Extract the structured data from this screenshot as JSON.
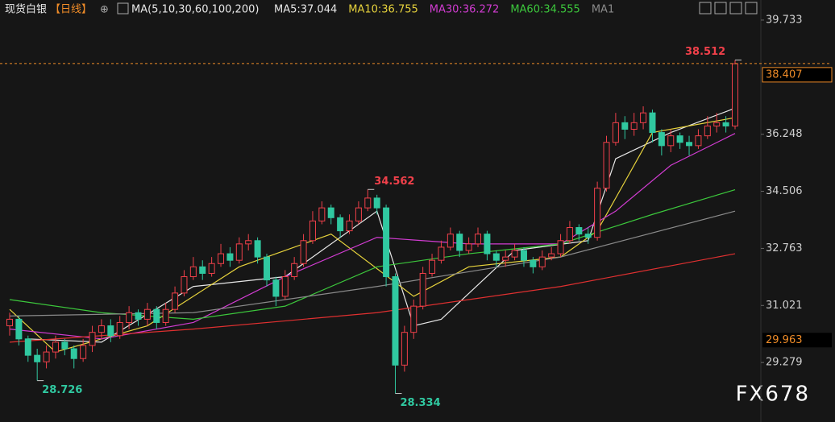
{
  "chart_data": {
    "type": "candlestick",
    "title": "现货白银",
    "period": "【日线】",
    "ma_params": "MA(5,10,30,60,100,200)",
    "ma_labels": [
      {
        "text": "MA5:37.044",
        "color": "#e8e8e8"
      },
      {
        "text": "MA10:36.755",
        "color": "#e6d23c"
      },
      {
        "text": "MA30:36.272",
        "color": "#d23cd2"
      },
      {
        "text": "MA60:34.555",
        "color": "#3cc83c"
      },
      {
        "text": "MA1",
        "color": "#8a8a8a"
      }
    ],
    "watermark": "FX678",
    "ylim": [
      27.463,
      40.346
    ],
    "yticks": [
      39.733,
      36.248,
      34.506,
      32.763,
      31.021,
      29.279
    ],
    "last_price": 38.407,
    "ref_price": 29.963,
    "annotations": [
      38.512,
      34.562,
      28.726,
      28.334
    ],
    "up_color": "#f0404a",
    "down_color": "#30c8a0",
    "open": [
      30.4,
      30.6,
      30.0,
      29.5,
      29.3,
      29.6,
      29.9,
      29.7,
      29.4,
      29.8,
      30.2,
      30.4,
      30.1,
      30.5,
      30.8,
      30.6,
      30.9,
      30.5,
      30.9,
      31.4,
      31.9,
      32.2,
      32.0,
      32.3,
      32.6,
      32.4,
      32.9,
      33.0,
      32.5,
      31.8,
      31.3,
      31.9,
      32.3,
      33.0,
      33.6,
      34.0,
      33.7,
      33.3,
      33.6,
      34.0,
      34.3,
      34.0,
      31.9,
      29.2,
      30.2,
      31.0,
      32.0,
      32.4,
      32.8,
      33.2,
      32.7,
      32.9,
      33.2,
      32.6,
      32.4,
      32.5,
      32.7,
      32.4,
      32.2,
      32.5,
      32.6,
      33.0,
      33.4,
      33.2,
      33.1,
      34.6,
      36.0,
      36.6,
      36.4,
      36.6,
      36.9,
      36.3,
      35.9,
      36.2,
      36.0,
      35.9,
      36.2,
      36.5,
      36.6,
      36.5
    ],
    "high": [
      30.8,
      30.7,
      30.1,
      29.7,
      29.8,
      30.1,
      30.0,
      29.8,
      30.0,
      30.4,
      30.6,
      30.6,
      30.7,
      31.0,
      30.9,
      31.1,
      31.0,
      31.1,
      31.6,
      32.1,
      32.5,
      32.4,
      32.5,
      32.9,
      32.8,
      33.1,
      33.2,
      33.1,
      32.6,
      31.9,
      32.1,
      32.5,
      33.2,
      33.9,
      34.2,
      34.1,
      33.8,
      33.8,
      34.2,
      34.562,
      34.4,
      34.1,
      32.0,
      30.4,
      31.2,
      32.2,
      32.6,
      33.0,
      33.4,
      33.3,
      33.1,
      33.4,
      33.3,
      32.7,
      32.7,
      32.9,
      32.8,
      32.5,
      32.7,
      32.8,
      33.2,
      33.6,
      33.5,
      33.4,
      34.8,
      36.2,
      36.9,
      36.8,
      36.9,
      37.1,
      37.0,
      36.4,
      36.4,
      36.3,
      36.2,
      36.4,
      36.8,
      36.9,
      36.8,
      38.512
    ],
    "low": [
      30.1,
      29.8,
      29.3,
      28.726,
      29.1,
      29.4,
      29.5,
      29.1,
      29.3,
      29.6,
      30.0,
      29.9,
      30.0,
      30.3,
      30.4,
      30.4,
      30.3,
      30.4,
      30.8,
      31.3,
      31.8,
      31.8,
      31.9,
      32.2,
      32.2,
      32.3,
      32.7,
      32.3,
      31.6,
      31.0,
      31.2,
      31.8,
      32.2,
      32.9,
      33.5,
      33.5,
      33.1,
      33.2,
      33.5,
      33.9,
      33.8,
      31.6,
      28.334,
      29.0,
      30.0,
      30.9,
      31.9,
      32.3,
      32.7,
      32.5,
      32.6,
      32.8,
      32.4,
      32.2,
      32.2,
      32.4,
      32.2,
      32.0,
      32.1,
      32.4,
      32.5,
      32.9,
      33.0,
      32.9,
      33.0,
      34.5,
      35.9,
      36.1,
      36.2,
      36.4,
      36.0,
      35.6,
      35.7,
      35.8,
      35.6,
      35.8,
      36.1,
      36.3,
      36.3,
      36.4
    ],
    "close": [
      30.6,
      30.0,
      29.5,
      29.3,
      29.6,
      29.9,
      29.7,
      29.4,
      29.8,
      30.2,
      30.4,
      30.1,
      30.5,
      30.8,
      30.6,
      30.9,
      30.5,
      30.9,
      31.4,
      31.9,
      32.2,
      32.0,
      32.3,
      32.6,
      32.4,
      32.9,
      33.0,
      32.5,
      31.8,
      31.3,
      31.9,
      32.3,
      33.0,
      33.6,
      34.0,
      33.7,
      33.3,
      33.6,
      34.0,
      34.3,
      34.0,
      31.9,
      29.2,
      30.2,
      31.0,
      32.0,
      32.4,
      32.8,
      33.2,
      32.7,
      32.9,
      33.2,
      32.6,
      32.4,
      32.5,
      32.7,
      32.4,
      32.2,
      32.5,
      32.6,
      33.0,
      33.4,
      33.2,
      33.1,
      34.6,
      36.0,
      36.6,
      36.4,
      36.6,
      36.9,
      36.3,
      35.9,
      36.2,
      36.0,
      35.9,
      36.2,
      36.5,
      36.6,
      36.5,
      38.4
    ],
    "ma_lines": [
      {
        "color": "#e8e8e8",
        "x": [
          2,
          10,
          20,
          30,
          40,
          44,
          47,
          55,
          63,
          66,
          72,
          79
        ],
        "values": [
          30.0,
          29.9,
          31.6,
          31.9,
          33.9,
          30.4,
          30.6,
          32.7,
          33.0,
          35.5,
          36.3,
          37.044
        ]
      },
      {
        "color": "#e6d23c",
        "x": [
          0,
          5,
          15,
          25,
          35,
          44,
          50,
          60,
          64,
          70,
          79
        ],
        "values": [
          30.9,
          29.6,
          30.4,
          32.2,
          33.2,
          31.3,
          32.2,
          32.5,
          33.3,
          36.3,
          36.755
        ]
      },
      {
        "color": "#d23cd2",
        "x": [
          0,
          10,
          20,
          30,
          40,
          50,
          60,
          66,
          72,
          79
        ],
        "values": [
          30.3,
          30.0,
          30.5,
          31.9,
          33.1,
          32.9,
          32.9,
          33.9,
          35.3,
          36.272
        ]
      },
      {
        "color": "#3cc83c",
        "x": [
          0,
          10,
          20,
          30,
          40,
          50,
          60,
          70,
          79
        ],
        "values": [
          31.2,
          30.8,
          30.6,
          31.0,
          32.2,
          32.6,
          32.9,
          33.8,
          34.555
        ]
      },
      {
        "color": "#8a8a8a",
        "x": [
          0,
          20,
          40,
          60,
          79
        ],
        "values": [
          30.7,
          30.8,
          31.6,
          32.5,
          33.9
        ]
      },
      {
        "color": "#e03030",
        "x": [
          0,
          20,
          40,
          60,
          79
        ],
        "values": [
          29.9,
          30.3,
          30.8,
          31.6,
          32.6
        ]
      }
    ]
  }
}
